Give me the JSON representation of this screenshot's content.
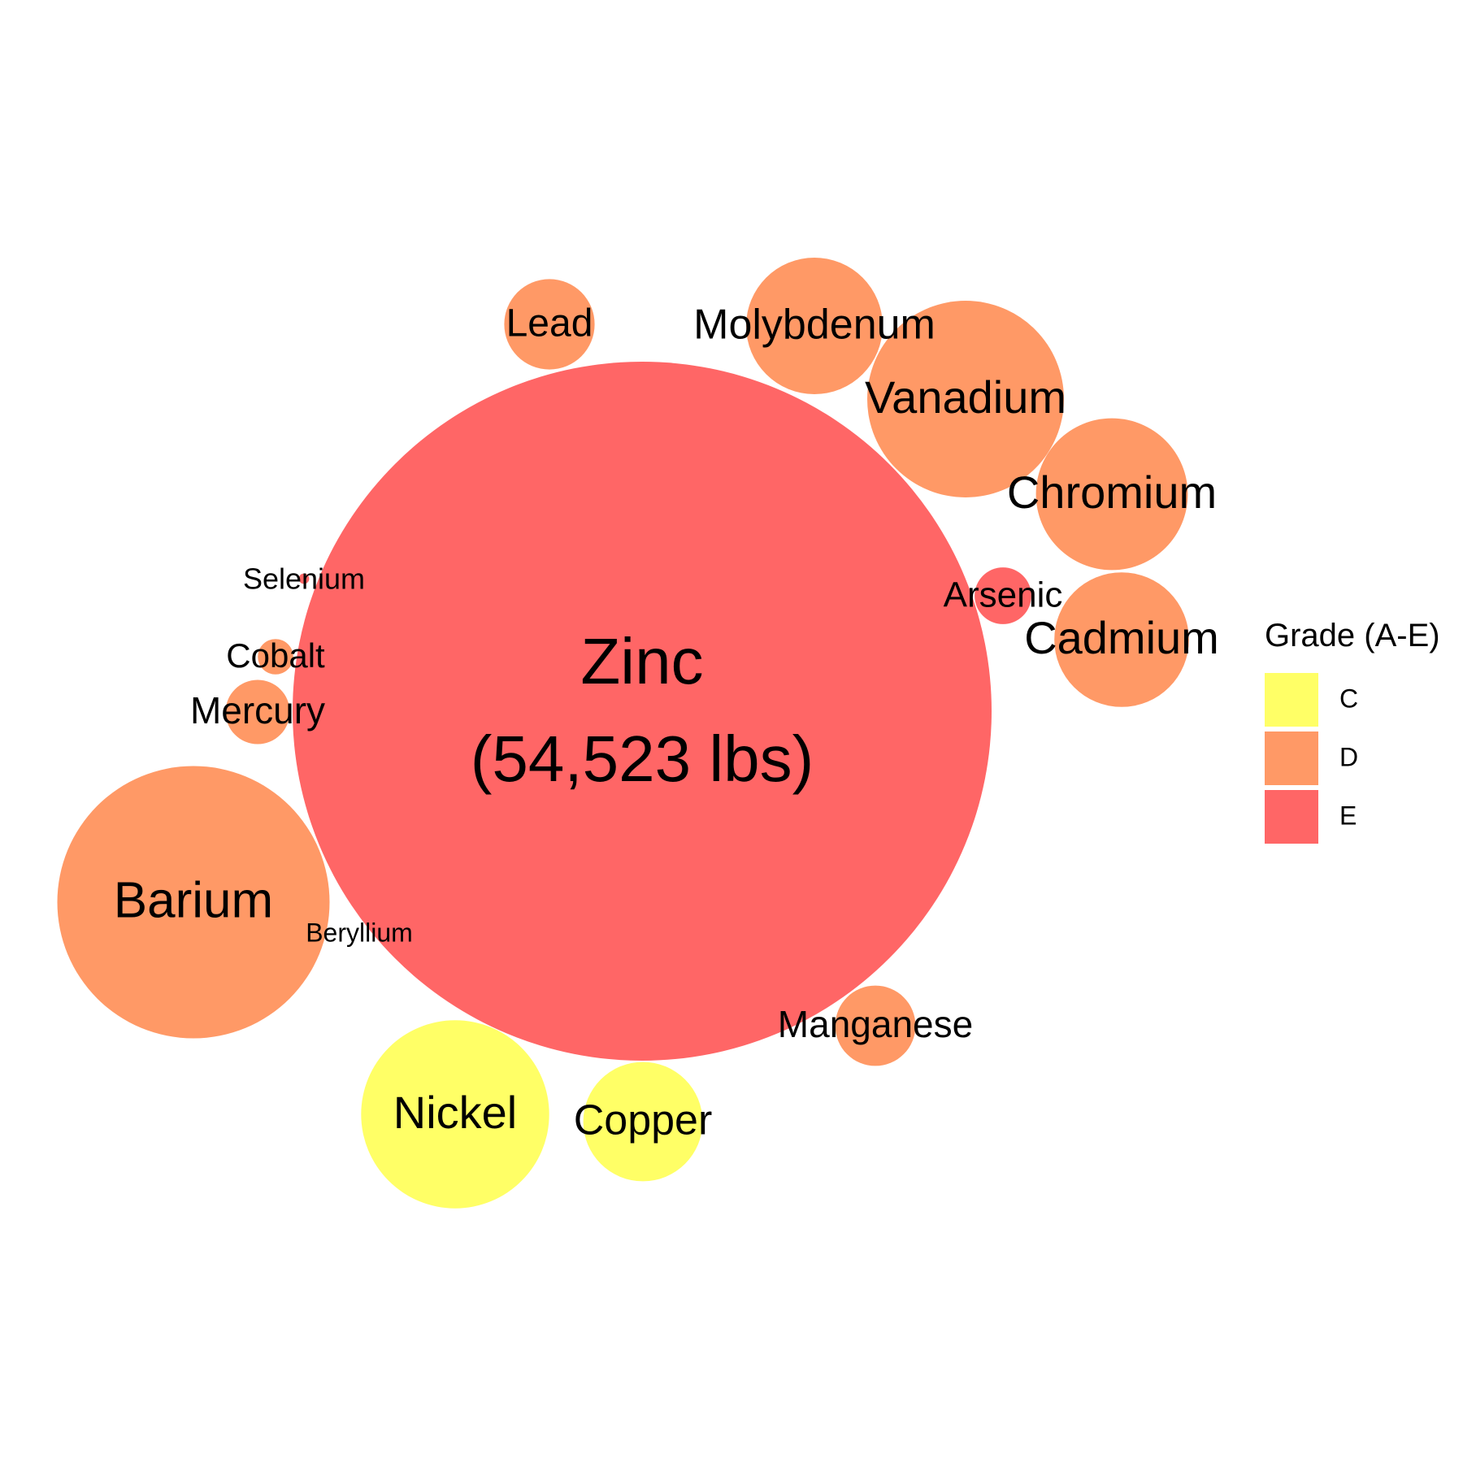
{
  "chart_data": {
    "type": "bubble",
    "units": "lbs",
    "legend": {
      "title": "Grade (A-E)",
      "placement": "right",
      "items": [
        {
          "grade": "C",
          "color": "#FFFF66"
        },
        {
          "grade": "D",
          "color": "#FF9966"
        },
        {
          "grade": "E",
          "color": "#FF6666"
        }
      ]
    },
    "bubbles": [
      {
        "name": "Zinc",
        "value": 54523,
        "grade": "E",
        "value_label": "(54,523 lbs)"
      },
      {
        "name": "Barium",
        "value": 8270,
        "grade": "D"
      },
      {
        "name": "Nickel",
        "value": 3950,
        "grade": "C"
      },
      {
        "name": "Vanadium",
        "value": 4320,
        "grade": "D"
      },
      {
        "name": "Chromium",
        "value": 2570,
        "grade": "D"
      },
      {
        "name": "Cadmium",
        "value": 2020,
        "grade": "D"
      },
      {
        "name": "Molybdenum",
        "value": 2080,
        "grade": "D"
      },
      {
        "name": "Copper",
        "value": 1590,
        "grade": "C"
      },
      {
        "name": "Lead",
        "value": 910,
        "grade": "D"
      },
      {
        "name": "Manganese",
        "value": 720,
        "grade": "D"
      },
      {
        "name": "Mercury",
        "value": 460,
        "grade": "D"
      },
      {
        "name": "Arsenic",
        "value": 360,
        "grade": "E"
      },
      {
        "name": "Cobalt",
        "value": 140,
        "grade": "D"
      },
      {
        "name": "Selenium",
        "value": 12,
        "grade": "E"
      },
      {
        "name": "Beryllium",
        "value": 0,
        "grade": "D"
      }
    ]
  }
}
